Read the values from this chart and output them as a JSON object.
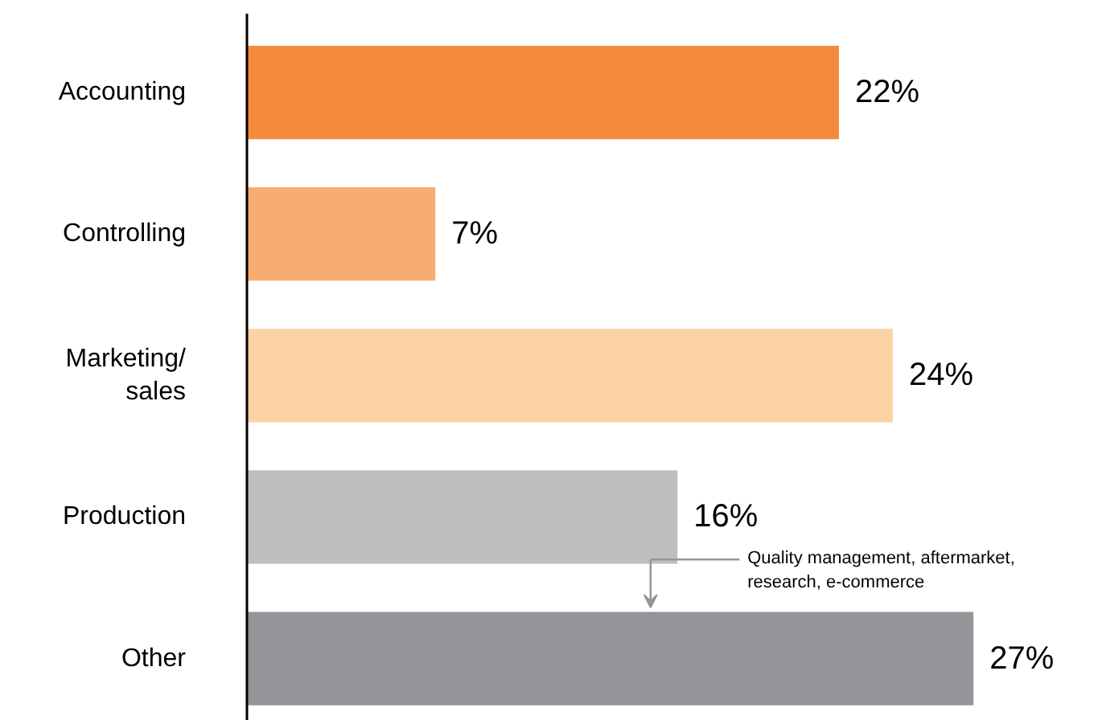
{
  "chart_data": {
    "type": "bar",
    "orientation": "horizontal",
    "categories": [
      "Accounting",
      "Controlling",
      "Marketing/\nsales",
      "Production",
      "Other"
    ],
    "values": [
      22,
      7,
      24,
      16,
      27
    ],
    "colors": [
      "#f58a3c",
      "#f8ac6f",
      "#fbd3a5",
      "#bdbec0",
      "#939598"
    ],
    "value_labels": [
      "22%",
      "7%",
      "24%",
      "16%",
      "27%"
    ],
    "tick_labels": "y",
    "grid": false,
    "annotations": [
      "Quality management, aftermarket,\nresearch, e-commerce"
    ]
  }
}
